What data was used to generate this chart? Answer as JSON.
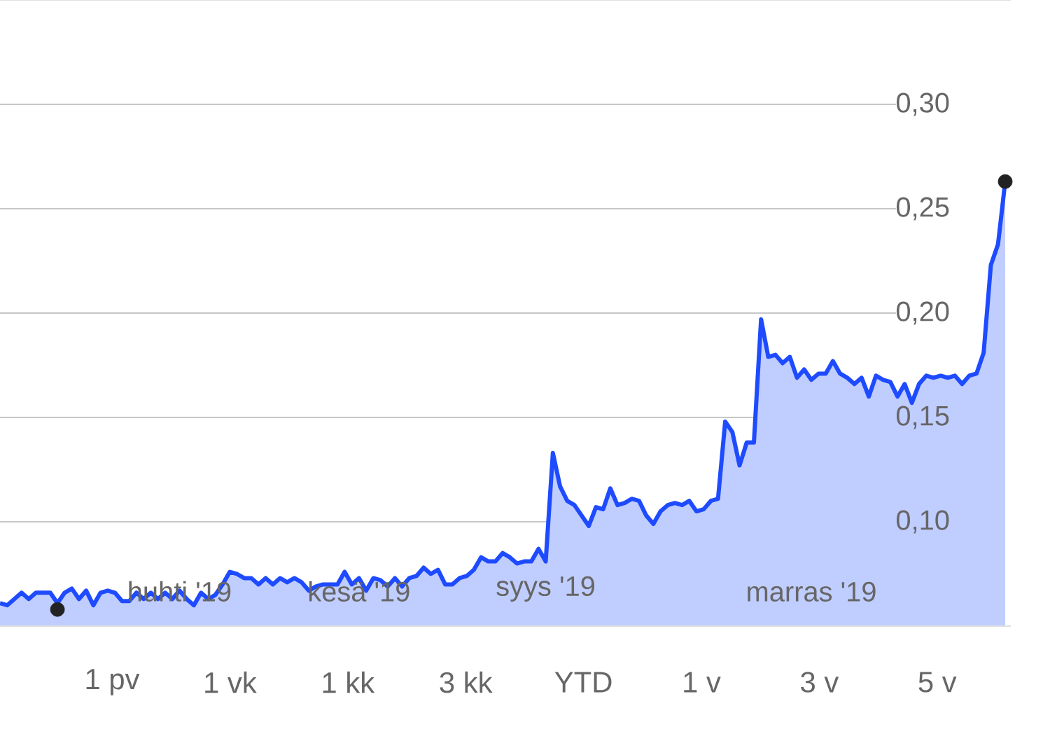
{
  "chart_data": {
    "type": "area",
    "categories": [
      null,
      null,
      null,
      null,
      null,
      null,
      null,
      null,
      null,
      null,
      null,
      null,
      null,
      null,
      null,
      null,
      null,
      null,
      null,
      null,
      null,
      null,
      null,
      null,
      null,
      "huhti '19",
      null,
      null,
      null,
      null,
      null,
      null,
      null,
      null,
      null,
      null,
      null,
      null,
      null,
      null,
      null,
      null,
      null,
      null,
      null,
      null,
      null,
      null,
      null,
      null,
      "kesä '19",
      null,
      null,
      null,
      null,
      null,
      null,
      null,
      null,
      null,
      null,
      null,
      null,
      null,
      null,
      null,
      null,
      null,
      null,
      null,
      null,
      null,
      null,
      null,
      null,
      null,
      "syys '19",
      null,
      null,
      null,
      null,
      null,
      null,
      null,
      null,
      null,
      null,
      null,
      null,
      null,
      null,
      null,
      null,
      null,
      null,
      null,
      null,
      null,
      null,
      null,
      null,
      null,
      null,
      null,
      null,
      null,
      null,
      null,
      null,
      null,
      null,
      null,
      null,
      "marras '19",
      null,
      null,
      null,
      null,
      null,
      null,
      null,
      null,
      null,
      null,
      null,
      null,
      null,
      null,
      null,
      null,
      null,
      null,
      null,
      null,
      null,
      null,
      null,
      null,
      null,
      null,
      null
    ],
    "series": [
      {
        "color": "#1e4bff",
        "values": [
          0.061,
          0.06,
          0.063,
          0.066,
          0.063,
          0.066,
          0.066,
          0.066,
          0.061,
          0.066,
          0.068,
          0.063,
          0.067,
          0.06,
          0.066,
          0.067,
          0.066,
          0.062,
          0.062,
          0.066,
          0.063,
          0.066,
          0.063,
          0.066,
          0.063,
          0.067,
          0.063,
          0.06,
          0.066,
          0.063,
          0.065,
          0.07,
          0.076,
          0.075,
          0.073,
          0.073,
          0.07,
          0.073,
          0.07,
          0.073,
          0.071,
          0.073,
          0.071,
          0.067,
          0.069,
          0.07,
          0.07,
          0.07,
          0.076,
          0.07,
          0.073,
          0.067,
          0.073,
          0.072,
          0.069,
          0.073,
          0.069,
          0.073,
          0.074,
          0.078,
          0.075,
          0.077,
          0.07,
          0.07,
          0.073,
          0.074,
          0.077,
          0.083,
          0.081,
          0.081,
          0.085,
          0.083,
          0.08,
          0.081,
          0.081,
          0.087,
          0.081,
          0.133,
          0.117,
          0.11,
          0.108,
          0.103,
          0.098,
          0.107,
          0.106,
          0.116,
          0.108,
          0.109,
          0.111,
          0.11,
          0.103,
          0.099,
          0.105,
          0.108,
          0.109,
          0.108,
          0.11,
          0.105,
          0.106,
          0.11,
          0.111,
          0.148,
          0.143,
          0.127,
          0.138,
          0.138,
          0.197,
          0.179,
          0.18,
          0.176,
          0.179,
          0.169,
          0.173,
          0.168,
          0.171,
          0.171,
          0.177,
          0.171,
          0.169,
          0.166,
          0.169,
          0.16,
          0.17,
          0.168,
          0.167,
          0.16,
          0.166,
          0.157,
          0.166,
          0.17,
          0.169,
          0.17,
          0.169,
          0.17,
          0.166,
          0.17,
          0.171,
          0.181,
          0.223,
          0.233,
          0.263
        ]
      },
      {
        "type": "scatter",
        "color": "#222222",
        "marker": "circle",
        "values": [
          null,
          null,
          null,
          null,
          null,
          null,
          null,
          null,
          0.058,
          null,
          null,
          null,
          null,
          null,
          null,
          null,
          null,
          null,
          null,
          null,
          null,
          null,
          null,
          null,
          null,
          null,
          null,
          null,
          null,
          null,
          null,
          null,
          null,
          null,
          null,
          null,
          null,
          null,
          null,
          null,
          null,
          null,
          null,
          null,
          null,
          null,
          null,
          null,
          null,
          null,
          null,
          null,
          null,
          null,
          null,
          null,
          null,
          null,
          null,
          null,
          null,
          null,
          null,
          null,
          null,
          null,
          null,
          null,
          null,
          null,
          null,
          null,
          null,
          null,
          null,
          null,
          null,
          null,
          null,
          null,
          null,
          null,
          null,
          null,
          null,
          null,
          null,
          null,
          null,
          null,
          null,
          null,
          null,
          null,
          null,
          null,
          null,
          null,
          null,
          null,
          null,
          null,
          null,
          null,
          null,
          null,
          null,
          null,
          null,
          null,
          null,
          null,
          null,
          null,
          null,
          null,
          null,
          null,
          null,
          null,
          null,
          null,
          null,
          null,
          null,
          null,
          null,
          null,
          null,
          null,
          null,
          null,
          null,
          null,
          null,
          null,
          null,
          null,
          null,
          null,
          0.263
        ]
      }
    ],
    "ylim": [
      0.05,
      0.35
    ],
    "yticks": [
      {
        "value": 0.1,
        "label": "0,10"
      },
      {
        "value": 0.15,
        "label": "0,15"
      },
      {
        "value": 0.2,
        "label": "0,20"
      },
      {
        "value": 0.25,
        "label": "0,25"
      },
      {
        "value": 0.3,
        "label": "0,30"
      }
    ],
    "grid": "y",
    "annotations": [
      "1 pv",
      "1 vk",
      "1 kk",
      "3 kk",
      "YTD",
      "1 v",
      "3 v",
      "5 v"
    ]
  }
}
